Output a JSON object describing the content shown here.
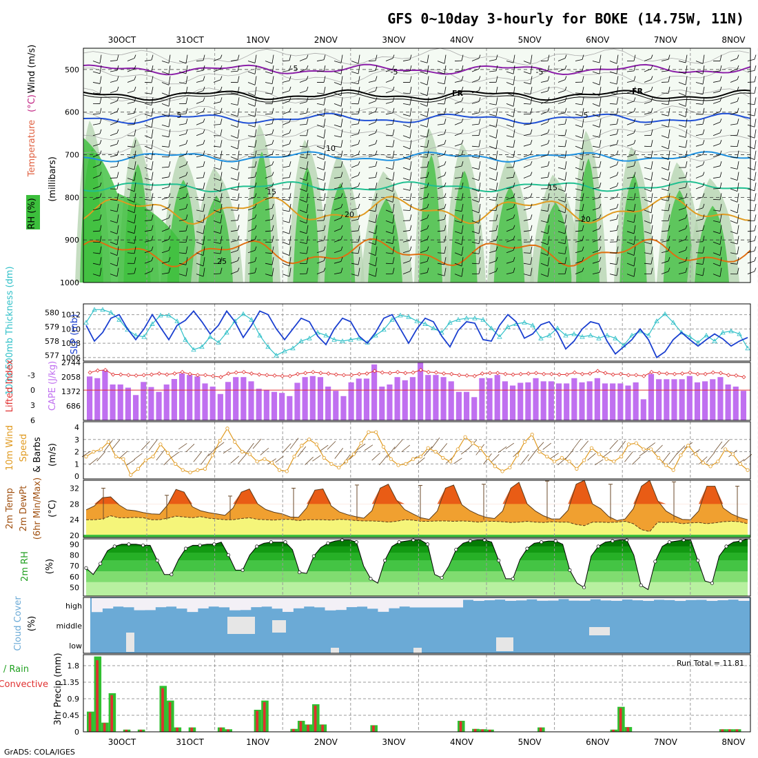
{
  "header": {
    "title": "GFS 0~10day 3-hourly for BOKE (14.75W, 11N)",
    "credit": "GrADS: COLA/IGES"
  },
  "dates": [
    "30OCT",
    "31OCT",
    "1NOV",
    "2NOV",
    "3NOV",
    "4NOV",
    "5NOV",
    "6NOV",
    "7NOV",
    "8NOV"
  ],
  "colors": {
    "rh_green": "#3cbf3c",
    "rh_light": "#d8ebd6",
    "temp_purple": "#8b1fa8",
    "temp_black": "#000000",
    "temp_blue": "#1f4fd6",
    "temp_lightblue": "#1e90e0",
    "temp_teal": "#1fbf90",
    "temp_orange": "#e09a20",
    "temp_darkorange": "#e06e10",
    "cape_bar": "#c070f0",
    "lifted": "#e03030",
    "slp": "#1a3fd0",
    "thick": "#30c0c8",
    "wind10": "#e09a20",
    "temp2m_fill": "#f0a030",
    "temp2m_hot": "#e85010",
    "dew_fill": "#f5f57a",
    "cloud": "#6baad6",
    "precip_total": "#30c030",
    "precip_conv": "#e03030"
  },
  "chart_data": [
    {
      "type": "contour",
      "name": "upper-air",
      "ylabel_rh": "RH (%)",
      "ylabel_temp": "Temperature",
      "ylabel_temp_unit": "(°C)",
      "ylabel_wind": "Wind (m/s)",
      "ylabel_pressure": "(millibars)",
      "y_ticks": [
        "500",
        "600",
        "700",
        "800",
        "900",
        "1000"
      ],
      "ylim": [
        1000,
        450
      ],
      "isotherms": [
        {
          "label": "-5",
          "level": 500
        },
        {
          "label": "FR",
          "level": 560
        },
        {
          "label": "5",
          "level": 615
        },
        {
          "label": "10",
          "level": 705
        },
        {
          "label": "15",
          "level": 775
        },
        {
          "label": "20",
          "level": 830
        },
        {
          "label": "25",
          "level": 930
        }
      ],
      "contour_labels": [
        "-5",
        "-5",
        "-5",
        "FR",
        "FR",
        "5",
        "5",
        "10",
        "15",
        "15",
        "20",
        "20",
        "25"
      ]
    },
    {
      "type": "line",
      "name": "slp-thickness",
      "ylabel_left": "1000-500mb Thickness (dm)",
      "ylabel_right": "SLP (mb)",
      "thick_ticks": [
        "580",
        "579",
        "578",
        "577"
      ],
      "slp_ticks": [
        "1012",
        "1010",
        "1008",
        "1006"
      ],
      "slp_ylim": [
        1005.5,
        1013.5
      ],
      "thick_ylim": [
        576.6,
        580.6
      ],
      "series": [
        {
          "name": "SLP",
          "values": [
            1010.5,
            1008.3,
            1009.5,
            1011.5,
            1012.0,
            1010.0,
            1008.5,
            1010.0,
            1012.0,
            1010.2,
            1008.5,
            1010.5,
            1011.2,
            1012.5,
            1011.0,
            1009.3,
            1010.5,
            1012.5,
            1011.0,
            1008.8,
            1010.5,
            1012.5,
            1012.0,
            1010.0,
            1008.5,
            1010.0,
            1011.5,
            1011.0,
            1009.0,
            1007.8,
            1010.0,
            1011.5,
            1011.0,
            1009.0,
            1008.0,
            1009.5,
            1011.5,
            1012.0,
            1010.0,
            1008.0,
            1010.0,
            1011.5,
            1011.0,
            1009.0,
            1007.5,
            1009.8,
            1011.0,
            1010.8,
            1008.5,
            1008.3,
            1010.5,
            1012.0,
            1011.0,
            1008.7,
            1009.3,
            1010.6,
            1011.0,
            1009.5,
            1007.2,
            1008.3,
            1010.0,
            1011.0,
            1010.7,
            1008.3,
            1006.5,
            1007.5,
            1008.5,
            1010.0,
            1008.5,
            1006.0,
            1006.8,
            1008.5,
            1009.5,
            1008.5,
            1007.6,
            1008.5,
            1009.3,
            1008.6,
            1007.6,
            1008.3,
            1008.8
          ]
        },
        {
          "name": "Thickness",
          "values": [
            579.3,
            580.2,
            580.2,
            580.0,
            579.5,
            578.8,
            578.4,
            578.3,
            579.2,
            579.8,
            579.8,
            579.4,
            578.1,
            577.4,
            577.6,
            578.3,
            577.9,
            578.6,
            579.4,
            579.9,
            579.5,
            578.4,
            577.6,
            577.0,
            577.3,
            577.5,
            578.0,
            578.2,
            578.6,
            578.4,
            578.1,
            578.0,
            578.1,
            578.2,
            577.9,
            578.4,
            578.8,
            579.5,
            579.8,
            579.7,
            579.4,
            579.2,
            578.9,
            578.6,
            579.3,
            579.5,
            579.6,
            579.6,
            579.5,
            578.9,
            578.3,
            579.0,
            579.2,
            579.3,
            579.1,
            578.2,
            578.4,
            578.9,
            578.4,
            578.5,
            578.3,
            578.4,
            578.2,
            578.4,
            578.2,
            577.7,
            578.4,
            578.7,
            578.4,
            579.4,
            579.9,
            579.3,
            578.6,
            578.3,
            577.9,
            578.4,
            578.0,
            578.6,
            578.7,
            578.5,
            577.5
          ]
        }
      ]
    },
    {
      "type": "bar",
      "name": "cape-lifted",
      "ylabel_left": "Lifted Index",
      "ylabel_right": "CAPE (J/kg)",
      "li_ticks": [
        "-3",
        "0",
        "3",
        "6"
      ],
      "cape_ticks": [
        "2744",
        "2058",
        "1372",
        "686"
      ],
      "cape_ylim": [
        0,
        2744
      ],
      "li_ylim": [
        6,
        -5.5
      ],
      "series": [
        {
          "name": "CAPE",
          "values": [
            2080,
            2000,
            2400,
            1700,
            1700,
            1550,
            1200,
            1820,
            1580,
            1350,
            1700,
            1960,
            2220,
            2150,
            2080,
            1750,
            1600,
            1250,
            1820,
            2050,
            2050,
            1850,
            1500,
            1450,
            1350,
            1300,
            1150,
            1780,
            2050,
            2100,
            2050,
            1600,
            1400,
            1150,
            1800,
            1980,
            1980,
            2650,
            1600,
            1700,
            2050,
            1900,
            2050,
            2750,
            2150,
            2150,
            2050,
            1850,
            1350,
            1350,
            1100,
            2000,
            2000,
            2150,
            1850,
            1650,
            1780,
            1800,
            2000,
            1850,
            1850,
            1750,
            1750,
            2000,
            1800,
            1850,
            2000,
            1750,
            1750,
            1750,
            1650,
            1800,
            1000,
            2200,
            1950,
            1950,
            1950,
            1950,
            2100,
            1800,
            1850,
            1950,
            2050,
            1700,
            1600,
            1400
          ]
        },
        {
          "name": "Lifted Index",
          "values": [
            -3.5,
            -3.9,
            -4.0,
            -3.1,
            -3.1,
            -3.0,
            -2.9,
            -3.0,
            -3.1,
            -3.3,
            -3.1,
            -3.3,
            -3.6,
            -3.2,
            -3.0,
            -3.0,
            -2.8,
            -2.6,
            -3.3,
            -3.5,
            -3.6,
            -3.3,
            -3.1,
            -3.0,
            -2.9,
            -2.8,
            -2.8,
            -3.2,
            -3.4,
            -3.6,
            -3.4,
            -3.3,
            -3.1,
            -3.0,
            -3.0,
            -3.2,
            -3.3,
            -3.8,
            -3.5,
            -3.4,
            -3.6,
            -3.4,
            -3.5,
            -4.0,
            -3.6,
            -3.5,
            -3.3,
            -3.2,
            -3.0,
            -2.9,
            -2.8,
            -3.3,
            -3.4,
            -3.4,
            -3.2,
            -3.1,
            -3.2,
            -3.3,
            -3.4,
            -3.2,
            -3.2,
            -3.1,
            -3.1,
            -3.5,
            -3.2,
            -3.3,
            -3.8,
            -3.4,
            -3.1,
            -3.2,
            -3.0,
            -3.0,
            -2.8,
            -3.6,
            -3.4,
            -3.3,
            -3.2,
            -3.3,
            -3.5,
            -3.2,
            -3.2,
            -3.5,
            -3.4,
            -3.0,
            -2.9,
            -2.6
          ]
        }
      ]
    },
    {
      "type": "line",
      "name": "wind10m",
      "ylabel_1": "10m Wind",
      "ylabel_2": "Speed",
      "ylabel_3": "& Barbs",
      "ylabel_unit": "(m/s)",
      "y_ticks": [
        "4",
        "3",
        "2",
        "1",
        "0"
      ],
      "ylim": [
        0,
        4
      ],
      "values": [
        1.6,
        2.0,
        2.2,
        2.8,
        1.6,
        1.4,
        0.1,
        0.6,
        1.3,
        1.6,
        2.6,
        1.9,
        1.0,
        0.5,
        0.3,
        0.5,
        0.6,
        1.7,
        2.9,
        3.9,
        2.8,
        2.0,
        1.8,
        1.2,
        1.4,
        1.1,
        0.5,
        0.4,
        1.6,
        2.5,
        3.0,
        2.6,
        1.5,
        1.0,
        0.7,
        1.2,
        1.8,
        2.7,
        3.6,
        3.6,
        2.4,
        1.4,
        0.9,
        1.0,
        1.4,
        1.6,
        2.3,
        2.0,
        1.5,
        1.2,
        2.2,
        3.2,
        2.7,
        2.3,
        1.5,
        0.8,
        0.4,
        0.7,
        1.7,
        2.8,
        3.4,
        2.0,
        1.6,
        1.2,
        1.5,
        1.2,
        0.6,
        1.3,
        2.3,
        1.8,
        1.4,
        1.2,
        1.6,
        2.6,
        2.7,
        2.2,
        2.2,
        1.5,
        0.9,
        0.5,
        1.7,
        2.5,
        1.8,
        1.1,
        0.8,
        1.2,
        2.2,
        1.8,
        1.0,
        0.5
      ]
    },
    {
      "type": "area",
      "name": "temp2m",
      "ylabel_1": "2m Temp",
      "ylabel_2": "2m DewPt",
      "ylabel_3": "(6hr Min/Max)",
      "ylabel_unit": "(°C)",
      "y_ticks": [
        "32",
        "28",
        "24",
        "20"
      ],
      "ylim": [
        19.5,
        34
      ],
      "series": [
        {
          "name": "Temp",
          "values": [
            26.5,
            27.5,
            29.6,
            29.8,
            27.8,
            26.5,
            26.3,
            25.8,
            25.5,
            25.4,
            27.8,
            31.7,
            31.0,
            27.3,
            26.3,
            25.8,
            25.5,
            25.1,
            27.0,
            31.0,
            31.8,
            28.0,
            26.6,
            25.9,
            25.5,
            24.7,
            24.6,
            27.0,
            31.5,
            31.8,
            27.5,
            26.0,
            25.3,
            24.8,
            24.4,
            26.3,
            32.0,
            33.0,
            29.0,
            26.6,
            25.5,
            24.5,
            24.1,
            26.2,
            32.0,
            32.8,
            27.8,
            26.3,
            25.3,
            24.6,
            24.3,
            26.2,
            32.0,
            33.5,
            28.0,
            26.2,
            25.0,
            24.2,
            24.2,
            26.4,
            33.0,
            34.0,
            28.0,
            26.8,
            24.8,
            23.8,
            24.2,
            26.8,
            32.5,
            34.0,
            28.8,
            26.2,
            25.0,
            24.1,
            24.0,
            26.2,
            32.5,
            32.5,
            27.0,
            25.5,
            24.6,
            24.0
          ]
        },
        {
          "name": "DewPt",
          "values": [
            24.0,
            24.0,
            24.2,
            25.0,
            24.5,
            24.5,
            24.6,
            24.5,
            24.0,
            24.0,
            24.4,
            24.9,
            24.7,
            24.5,
            24.8,
            24.4,
            24.2,
            24.0,
            24.0,
            24.3,
            24.5,
            24.1,
            24.0,
            23.9,
            24.1,
            24.1,
            23.8,
            24.0,
            24.0,
            24.0,
            23.9,
            24.1,
            24.0,
            23.8,
            23.7,
            23.7,
            23.6,
            23.4,
            23.6,
            24.0,
            23.9,
            23.6,
            23.6,
            23.7,
            23.7,
            23.6,
            23.7,
            23.6,
            23.4,
            23.6,
            23.6,
            23.5,
            23.3,
            23.4,
            23.6,
            23.4,
            23.3,
            23.5,
            23.4,
            23.4,
            22.8,
            22.5,
            23.4,
            23.4,
            23.3,
            23.4,
            23.6,
            23.0,
            21.5,
            21.0,
            23.4,
            23.3,
            23.4,
            23.0,
            23.2,
            23.3,
            23.0,
            23.2,
            23.5,
            23.6,
            23.5,
            23.0
          ]
        }
      ],
      "max_whiskers": [
        32.0,
        30.2,
        30.0,
        32.0,
        32.8,
        32.7,
        33.0,
        33.8,
        33.0,
        33.6,
        32.5
      ]
    },
    {
      "type": "area",
      "name": "rh2m",
      "ylabel": "2m RH",
      "ylabel_unit": "(%)",
      "y_ticks": [
        "90",
        "80",
        "70",
        "60",
        "50"
      ],
      "ylim": [
        42,
        95
      ],
      "values": [
        68,
        62,
        72,
        84,
        88,
        90,
        90,
        90,
        89,
        89,
        75,
        62,
        62,
        76,
        86,
        89,
        89,
        90,
        90,
        92,
        80,
        66,
        66,
        80,
        88,
        91,
        92,
        92,
        92,
        85,
        64,
        63,
        79,
        87,
        91,
        93,
        94,
        94,
        92,
        70,
        58,
        54,
        75,
        88,
        92,
        93,
        94,
        94,
        90,
        62,
        59,
        70,
        85,
        91,
        93,
        94,
        94,
        92,
        75,
        58,
        58,
        76,
        86,
        91,
        92,
        93,
        93,
        90,
        66,
        54,
        50,
        79,
        88,
        92,
        93,
        94,
        94,
        80,
        52,
        48,
        74,
        88,
        92,
        93,
        94,
        94,
        75,
        56,
        54,
        79,
        88,
        92,
        93,
        95
      ]
    },
    {
      "type": "area",
      "name": "cloud",
      "ylabel_1": "Cloud Cover",
      "ylabel_unit": "(%)",
      "levels": [
        "high",
        "middle",
        "low"
      ]
    },
    {
      "type": "bar",
      "name": "precip",
      "ylabel_1": "3hr Precip (mm)",
      "ylabel_2": "Total / Rain",
      "ylabel_3": "Convective",
      "run_total_label": "Run Total = 11.81",
      "y_ticks": [
        "1.8",
        "1.35",
        "0.9",
        "0.45",
        "0"
      ],
      "ylim": [
        0,
        2.1
      ],
      "values": [
        0.55,
        2.05,
        0.25,
        1.05,
        0,
        0.06,
        0,
        0.06,
        0,
        0,
        1.25,
        0.85,
        0.12,
        0,
        0.12,
        0,
        0,
        0,
        0.12,
        0.07,
        0,
        0,
        0,
        0.6,
        0.85,
        0,
        0,
        0,
        0.08,
        0.3,
        0.2,
        0.75,
        0.2,
        0,
        0,
        0,
        0,
        0,
        0,
        0.18,
        0,
        0,
        0,
        0,
        0,
        0,
        0,
        0,
        0,
        0,
        0,
        0.3,
        0,
        0.08,
        0.07,
        0.06,
        0,
        0,
        0,
        0,
        0,
        0,
        0.12,
        0,
        0,
        0,
        0,
        0,
        0,
        0,
        0,
        0,
        0.06,
        0.68,
        0.13,
        0,
        0,
        0,
        0,
        0,
        0,
        0,
        0,
        0,
        0,
        0,
        0,
        0.07,
        0.07,
        0.07,
        0
      ]
    }
  ]
}
